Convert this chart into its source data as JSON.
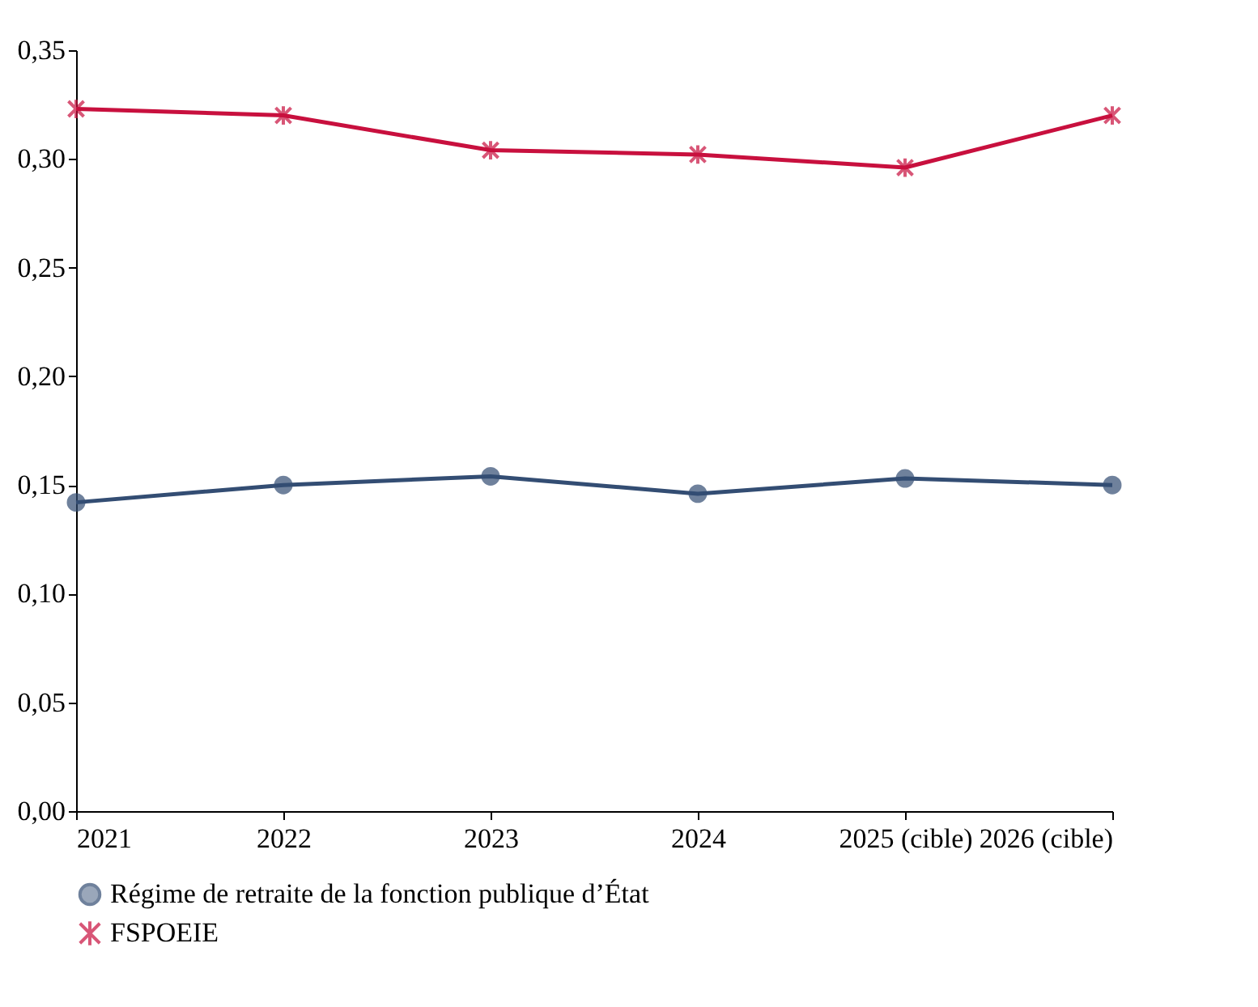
{
  "chart_data": {
    "type": "line",
    "categories": [
      "2021",
      "2022",
      "2023",
      "2024",
      "2025 (cible)",
      "2026 (cible)"
    ],
    "series": [
      {
        "name": "Régime de retraite de la fonction publique d’État",
        "color": "#334d73",
        "marker": "circle",
        "values": [
          0.142,
          0.15,
          0.154,
          0.146,
          0.153,
          0.15
        ]
      },
      {
        "name": "FSPOEIE",
        "color": "#c8103e",
        "marker": "cross",
        "values": [
          0.323,
          0.32,
          0.304,
          0.302,
          0.296,
          0.32
        ]
      }
    ],
    "ylim": [
      0,
      0.35
    ],
    "yticks": [
      {
        "value": 0,
        "label": "0,00"
      },
      {
        "value": 0.05,
        "label": "0,05"
      },
      {
        "value": 0.1,
        "label": "0,10"
      },
      {
        "value": 0.15,
        "label": "0,15"
      },
      {
        "value": 0.2,
        "label": "0,20"
      },
      {
        "value": 0.25,
        "label": "0,25"
      },
      {
        "value": 0.3,
        "label": "0,30"
      },
      {
        "value": 0.35,
        "label": "0,35"
      }
    ],
    "grid": false,
    "legend": "bottom",
    "line_style": "solid"
  }
}
